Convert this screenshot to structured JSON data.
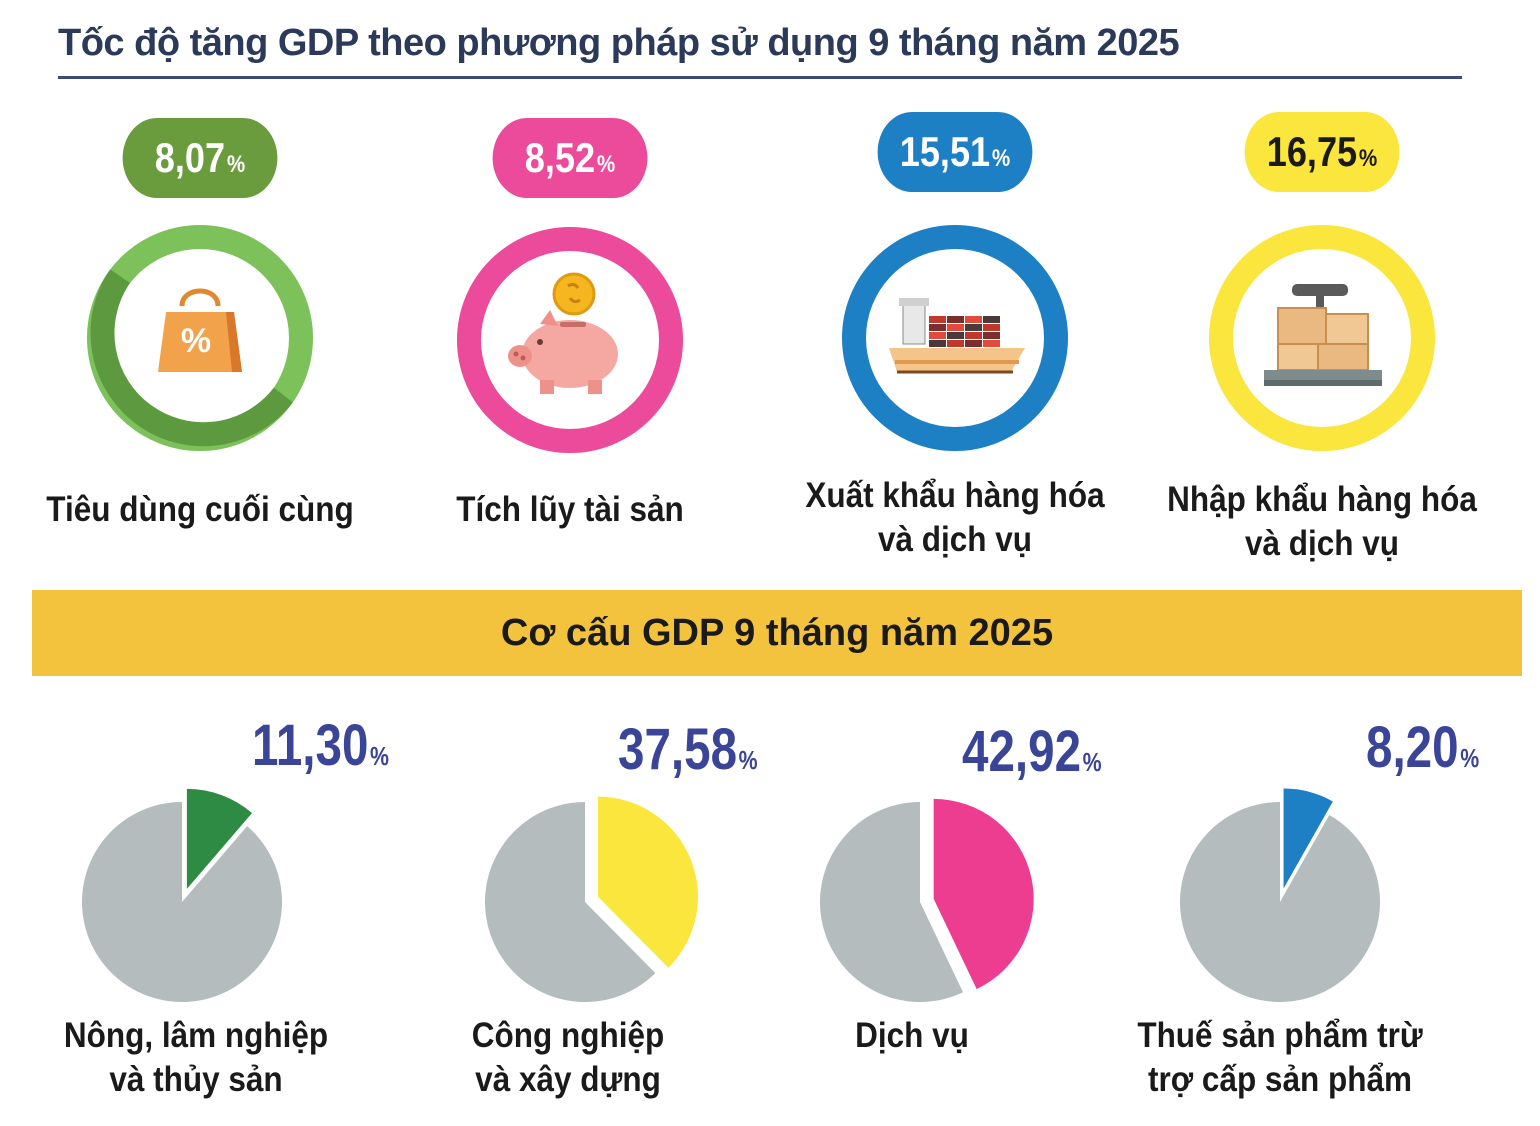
{
  "title": "Tốc độ tăng GDP theo phương pháp sử dụng 9 tháng năm 2025",
  "chart_data": [
    {
      "type": "bar",
      "title": "Tốc độ tăng GDP theo phương pháp sử dụng 9 tháng năm 2025",
      "unit": "%",
      "categories": [
        "Tiêu dùng cuối cùng",
        "Tích lũy tài sản",
        "Xuất khẩu hàng hóa và dịch vụ",
        "Nhập khẩu hàng hóa và dịch vụ"
      ],
      "values": [
        8.07,
        8.52,
        15.51,
        16.75
      ],
      "items": [
        {
          "value_text": "8,07",
          "pct": "%",
          "label": "Tiêu dùng cuối cùng",
          "color": "#6a9b3d",
          "ring_color": "#7cc15a",
          "ring_dark": "#5d9a3f",
          "text_color": "#ffffff",
          "icon": "shopping-bag-percent-icon"
        },
        {
          "value_text": "8,52",
          "pct": "%",
          "label": "Tích lũy tài sản",
          "color": "#ec4a9a",
          "ring_color": "#ec4a9a",
          "ring_dark": "#ec4a9a",
          "text_color": "#ffffff",
          "icon": "piggy-bank-coin-icon"
        },
        {
          "value_text": "15,51",
          "pct": "%",
          "label": "Xuất khẩu hàng hóa\nvà dịch vụ",
          "color": "#1d7fc4",
          "ring_color": "#1d7fc4",
          "ring_dark": "#1d7fc4",
          "text_color": "#ffffff",
          "icon": "cargo-ship-icon"
        },
        {
          "value_text": "16,75",
          "pct": "%",
          "label": "Nhập khẩu hàng hóa\nvà dịch vụ",
          "color": "#fae63c",
          "ring_color": "#fae63c",
          "ring_dark": "#fae63c",
          "text_color": "#1a1a1a",
          "icon": "weighing-scale-boxes-icon"
        }
      ]
    },
    {
      "type": "pie",
      "title": "Cơ cấu GDP 9 tháng năm 2025",
      "unit": "%",
      "categories": [
        "Nông, lâm nghiệp và thủy sản",
        "Công nghiệp và xây dựng",
        "Dịch vụ",
        "Thuế sản phẩm trừ trợ cấp sản phẩm"
      ],
      "values": [
        11.3,
        37.58,
        42.92,
        8.2
      ],
      "items": [
        {
          "value_text": "11,30",
          "pct": "%",
          "label": "Nông, lâm nghiệp\nvà thủy sản",
          "color": "#2e8b44"
        },
        {
          "value_text": "37,58",
          "pct": "%",
          "label": "Công nghiệp\nvà xây dựng",
          "color": "#fae63c"
        },
        {
          "value_text": "42,92",
          "pct": "%",
          "label": "Dịch vụ",
          "color": "#ec3d91"
        },
        {
          "value_text": "8,20",
          "pct": "%",
          "label": "Thuế sản phẩm trừ\ntrợ cấp sản phẩm",
          "color": "#1d7fc4"
        }
      ],
      "rest_color": "#b5bcbd"
    }
  ]
}
